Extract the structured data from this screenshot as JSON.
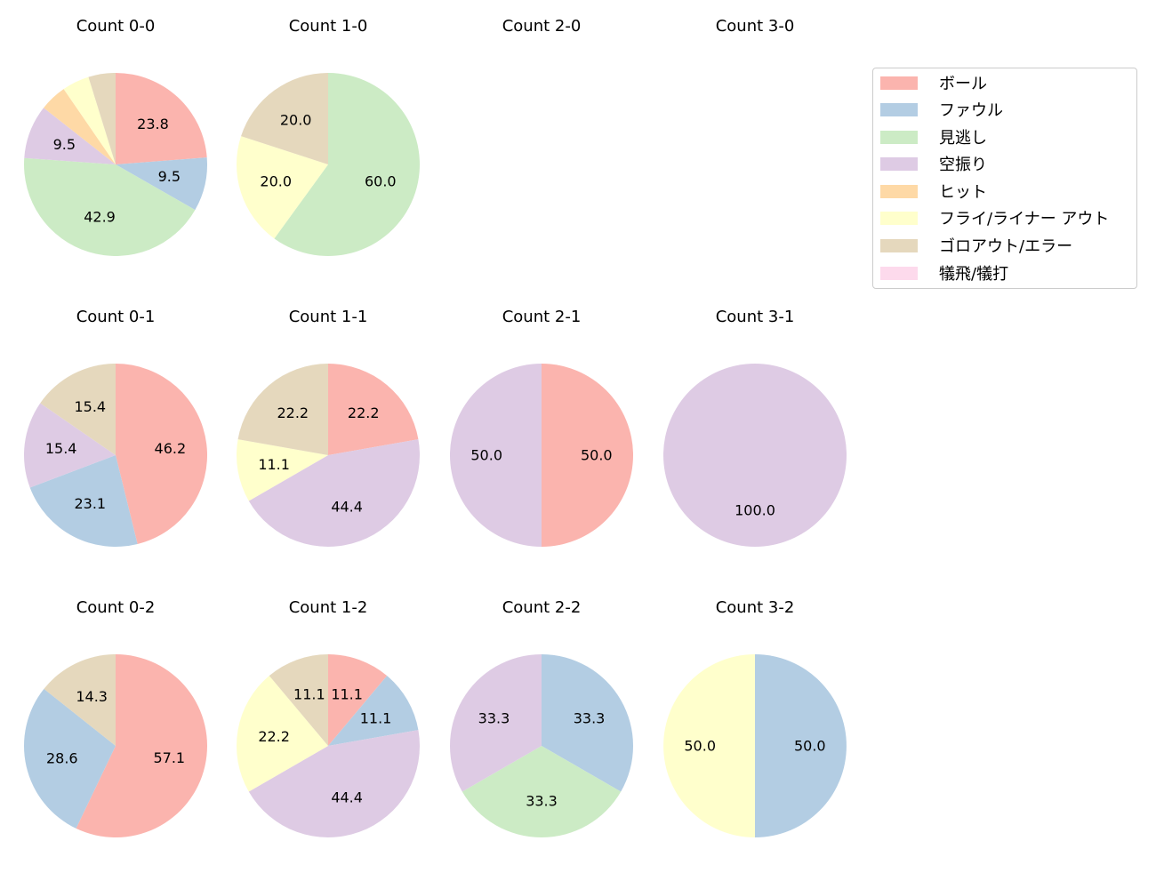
{
  "chart_data": {
    "type": "pie",
    "start_angle": 90,
    "direction": "clockwise",
    "legend": {
      "position": "upper right",
      "entries": [
        {
          "label": "ボール",
          "color": "#fbb4ae"
        },
        {
          "label": "ファウル",
          "color": "#b3cde3"
        },
        {
          "label": "見逃し",
          "color": "#ccebc5"
        },
        {
          "label": "空振り",
          "color": "#decbe4"
        },
        {
          "label": "ヒット",
          "color": "#fed9a6"
        },
        {
          "label": "フライ/ライナー アウト",
          "color": "#ffffcc"
        },
        {
          "label": "ゴロアウト/エラー",
          "color": "#e5d8bd"
        },
        {
          "label": "犠飛/犠打",
          "color": "#fddaec"
        }
      ]
    },
    "charts": [
      {
        "title": "Count 0-0",
        "values": [
          23.8,
          9.5,
          42.9,
          9.5,
          4.8,
          4.8,
          4.8,
          0
        ],
        "labels_shown": [
          "23.8",
          "9.5",
          "42.9",
          "9.5",
          "",
          "",
          "",
          ""
        ]
      },
      {
        "title": "Count 1-0",
        "values": [
          0,
          0,
          60.0,
          0,
          0,
          20.0,
          20.0,
          0
        ],
        "labels_shown": [
          "",
          "",
          "60.0",
          "",
          "",
          "20.0",
          "20.0",
          ""
        ]
      },
      {
        "title": "Count 2-0",
        "values": [],
        "labels_shown": []
      },
      {
        "title": "Count 3-0",
        "values": [],
        "labels_shown": []
      },
      {
        "title": "Count 0-1",
        "values": [
          46.2,
          23.1,
          0,
          15.4,
          0,
          0,
          15.4,
          0
        ],
        "labels_shown": [
          "46.2",
          "23.1",
          "",
          "15.4",
          "",
          "",
          "15.4",
          ""
        ]
      },
      {
        "title": "Count 1-1",
        "values": [
          22.2,
          0,
          0,
          44.4,
          0,
          11.1,
          22.2,
          0
        ],
        "labels_shown": [
          "22.2",
          "",
          "",
          "44.4",
          "",
          "11.1",
          "22.2",
          ""
        ]
      },
      {
        "title": "Count 2-1",
        "values": [
          50.0,
          0,
          0,
          50.0,
          0,
          0,
          0,
          0
        ],
        "labels_shown": [
          "50.0",
          "",
          "",
          "50.0",
          "",
          "",
          "",
          ""
        ]
      },
      {
        "title": "Count 3-1",
        "values": [
          0,
          0,
          0,
          100.0,
          0,
          0,
          0,
          0
        ],
        "labels_shown": [
          "",
          "",
          "",
          "100.0",
          "",
          "",
          "",
          ""
        ]
      },
      {
        "title": "Count 0-2",
        "values": [
          57.1,
          28.6,
          0,
          0,
          0,
          0,
          14.3,
          0
        ],
        "labels_shown": [
          "57.1",
          "28.6",
          "",
          "",
          "",
          "",
          "14.3",
          ""
        ]
      },
      {
        "title": "Count 1-2",
        "values": [
          11.1,
          11.1,
          0,
          44.4,
          0,
          22.2,
          11.1,
          0
        ],
        "labels_shown": [
          "11.1",
          "11.1",
          "",
          "44.4",
          "",
          "22.2",
          "11.1",
          ""
        ]
      },
      {
        "title": "Count 2-2",
        "values": [
          0,
          33.3,
          33.3,
          33.3,
          0,
          0,
          0,
          0
        ],
        "labels_shown": [
          "",
          "33.3",
          "33.3",
          "33.3",
          "",
          "",
          "",
          ""
        ]
      },
      {
        "title": "Count 3-2",
        "values": [
          0,
          50.0,
          0,
          0,
          0,
          50.0,
          0,
          0
        ],
        "labels_shown": [
          "",
          "50.0",
          "",
          "",
          "",
          "50.0",
          "",
          ""
        ]
      }
    ],
    "grid": {
      "rows": 3,
      "cols": 4
    }
  }
}
